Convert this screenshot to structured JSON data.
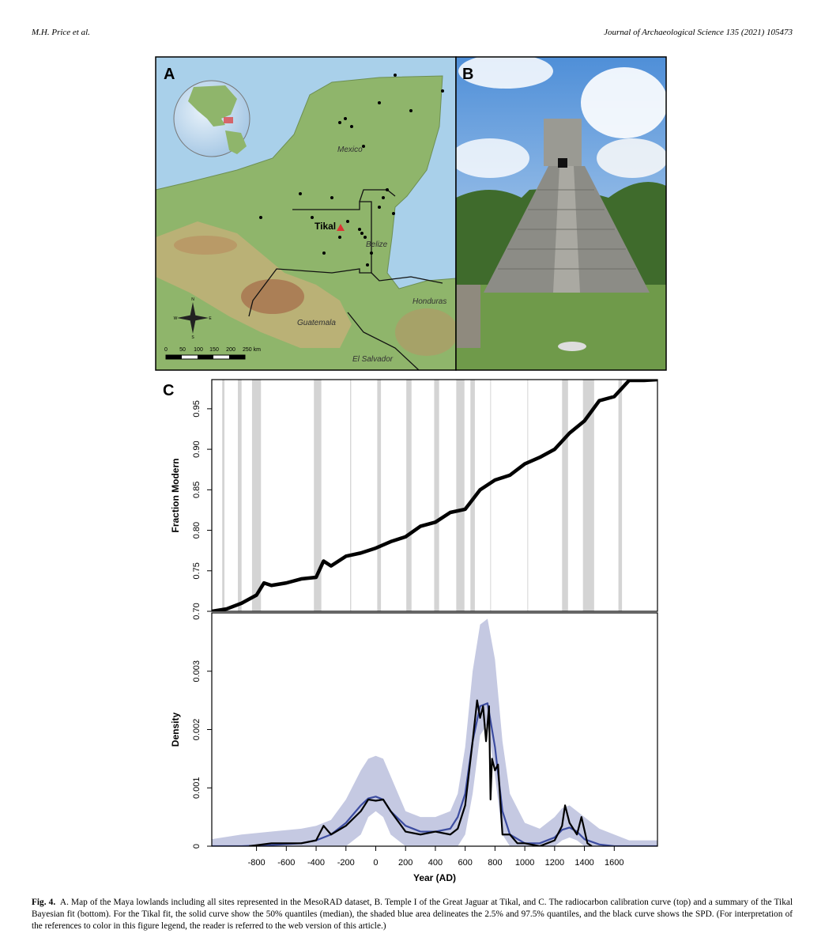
{
  "header": {
    "authors": "M.H. Price et al.",
    "journal": "Journal of Archaeological Science 135 (2021) 105473"
  },
  "panel_labels": [
    "A",
    "B",
    "C"
  ],
  "map": {
    "places": [
      "Mexico",
      "Tikal",
      "Belize",
      "Honduras",
      "Guatemala",
      "El Salvador"
    ],
    "scale_labels": [
      "0",
      "50",
      "100",
      "150",
      "200",
      "250 km"
    ],
    "compass": [
      "N",
      "S",
      "E",
      "W"
    ]
  },
  "chart_data": [
    {
      "type": "line",
      "ylabel": "Fraction Modern",
      "xlim": [
        -1100,
        1890
      ],
      "ylim": [
        0.7,
        0.986
      ],
      "yticks": [
        {
          "value": 0.7,
          "label": "0.70"
        },
        0.75,
        {
          "value": 0.8,
          "label": "0.80"
        },
        0.85,
        {
          "value": 0.9,
          "label": "0.90"
        },
        0.95
      ],
      "shade_color": "#d4d4d4",
      "shaded_ranges": [
        [
          -1030,
          -1015
        ],
        [
          -925,
          -900
        ],
        [
          -830,
          -770
        ],
        [
          -415,
          -365
        ],
        [
          -172,
          -165
        ],
        [
          10,
          35
        ],
        [
          205,
          240
        ],
        [
          392,
          425
        ],
        [
          540,
          595
        ],
        [
          635,
          665
        ],
        [
          768,
          773
        ],
        [
          1017,
          1022
        ],
        [
          1250,
          1290
        ],
        [
          1390,
          1465
        ],
        [
          1628,
          1652
        ]
      ],
      "x": [
        -1100,
        -1000,
        -900,
        -800,
        -750,
        -700,
        -600,
        -500,
        -400,
        -350,
        -300,
        -200,
        -100,
        0,
        100,
        200,
        300,
        400,
        500,
        600,
        700,
        800,
        900,
        1000,
        1100,
        1200,
        1300,
        1400,
        1500,
        1600,
        1700,
        1800,
        1890
      ],
      "series": [
        {
          "color": "#000000",
          "values": [
            0.7,
            0.703,
            0.71,
            0.72,
            0.735,
            0.732,
            0.735,
            0.74,
            0.742,
            0.762,
            0.756,
            0.768,
            0.772,
            0.778,
            0.786,
            0.792,
            0.805,
            0.81,
            0.822,
            0.826,
            0.85,
            0.862,
            0.868,
            0.882,
            0.89,
            0.9,
            0.92,
            0.935,
            0.96,
            0.965,
            0.985,
            0.985,
            0.986
          ]
        }
      ]
    },
    {
      "type": "line",
      "ylabel": "Density",
      "xlabel": "Year (AD)",
      "xlim": [
        -1100,
        1890
      ],
      "ylim": [
        0,
        0.004
      ],
      "xticks": [
        -800,
        -600,
        -400,
        -200,
        0,
        200,
        400,
        600,
        800,
        1000,
        1200,
        1400,
        1600
      ],
      "yticks": [
        0,
        0.001,
        0.002,
        0.003
      ],
      "x": [
        -1100,
        -900,
        -700,
        -500,
        -400,
        -300,
        -200,
        -100,
        -50,
        0,
        50,
        100,
        200,
        300,
        400,
        500,
        550,
        600,
        650,
        700,
        750,
        800,
        850,
        900,
        1000,
        1100,
        1200,
        1250,
        1300,
        1350,
        1400,
        1500,
        1600,
        1700,
        1890
      ],
      "band": {
        "color": "#c5c9e2",
        "upper": [
          0.00012,
          0.0002,
          0.00025,
          0.0003,
          0.00035,
          0.00045,
          0.0008,
          0.0013,
          0.0015,
          0.00155,
          0.0015,
          0.0012,
          0.0006,
          0.0005,
          0.0005,
          0.0006,
          0.0009,
          0.0017,
          0.003,
          0.0038,
          0.0039,
          0.0032,
          0.0018,
          0.0009,
          0.0004,
          0.0003,
          0.0005,
          0.00065,
          0.0007,
          0.0006,
          0.0005,
          0.0003,
          0.0002,
          0.0001,
          0.0001
        ],
        "lower": [
          0,
          0,
          0,
          0,
          0,
          0,
          0,
          0.0002,
          0.0005,
          0.0006,
          0.0005,
          0.0002,
          0,
          0,
          0,
          0,
          0,
          0.0002,
          0.0009,
          0.0019,
          0.0021,
          0.0012,
          0.0002,
          0,
          0,
          0,
          0,
          0.0001,
          0.00015,
          0.0001,
          0,
          0,
          0,
          0,
          0
        ]
      },
      "series": [
        {
          "color": "#3c4ca0",
          "values": [
            0,
            0,
            2e-05,
            5e-05,
            0.0001,
            0.0002,
            0.0004,
            0.0007,
            0.00082,
            0.00085,
            0.0008,
            0.0006,
            0.00035,
            0.00025,
            0.00025,
            0.0003,
            0.0005,
            0.0009,
            0.0018,
            0.0024,
            0.00245,
            0.0017,
            0.0006,
            0.0002,
            5e-05,
            5e-05,
            0.00015,
            0.00028,
            0.00032,
            0.00025,
            0.00012,
            3e-05,
            0,
            0,
            0
          ]
        },
        {
          "color": "#000000",
          "x": [
            -850,
            -700,
            -500,
            -400,
            -350,
            -300,
            -200,
            -100,
            -50,
            0,
            50,
            100,
            200,
            300,
            400,
            500,
            550,
            600,
            650,
            680,
            700,
            720,
            740,
            760,
            770,
            780,
            800,
            820,
            850,
            900,
            950,
            1000,
            1100,
            1200,
            1250,
            1270,
            1300,
            1350,
            1380,
            1420,
            1450
          ],
          "values": [
            0,
            5e-05,
            5e-05,
            0.0001,
            0.00035,
            0.0002,
            0.00035,
            0.0006,
            0.0008,
            0.00078,
            0.0008,
            0.0006,
            0.00025,
            0.0002,
            0.00025,
            0.0002,
            0.0003,
            0.0007,
            0.0018,
            0.0025,
            0.0022,
            0.0024,
            0.0018,
            0.0024,
            0.0008,
            0.0015,
            0.0013,
            0.0014,
            0.0002,
            0.0002,
            5e-05,
            5e-05,
            0,
            0.0001,
            0.00035,
            0.0007,
            0.0004,
            0.0002,
            0.0005,
            5e-05,
            0
          ]
        }
      ]
    }
  ],
  "caption": {
    "label": "Fig. 4.",
    "text": "A. Map of the Maya lowlands including all sites represented in the MesoRAD dataset, B. Temple I of the Great Jaguar at Tikal, and C. The radiocarbon calibration curve (top) and a summary of the Tikal Bayesian fit (bottom). For the Tikal fit, the solid curve show the 50% quantiles (median), the shaded blue area delineates the 2.5% and 97.5% quantiles, and the black curve shows the SPD.  (For interpretation of the references to color in this figure legend, the reader is referred to the web version of this article.)"
  }
}
